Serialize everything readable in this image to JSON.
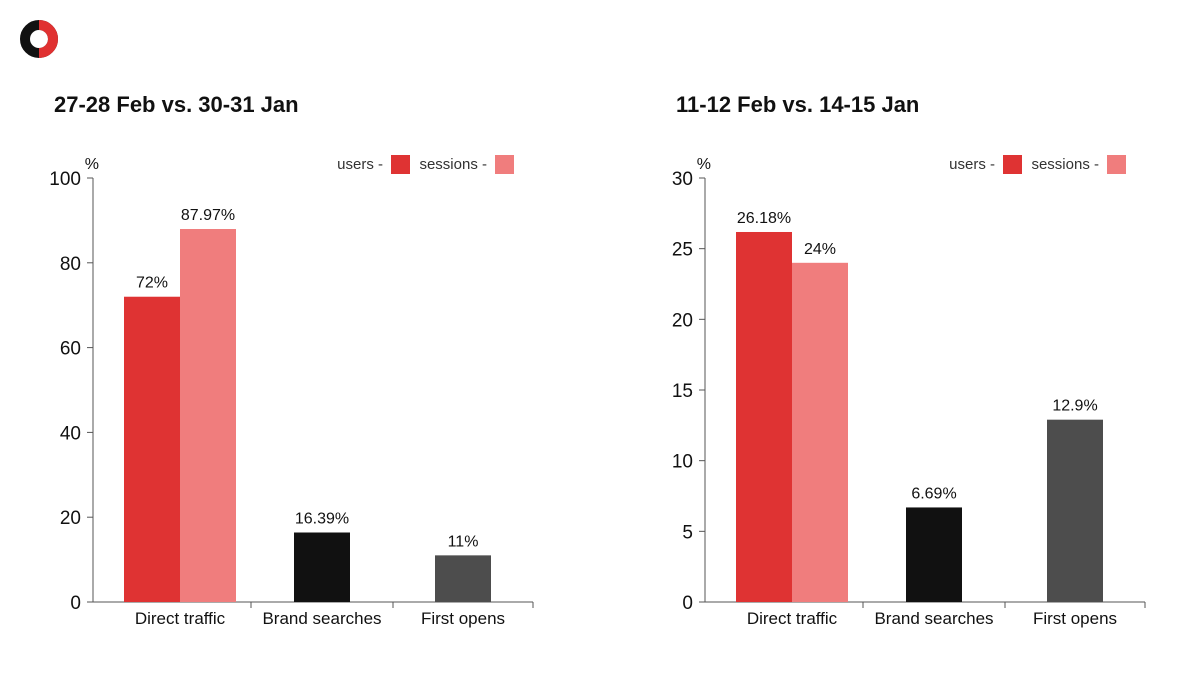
{
  "logo": {
    "name": "logo-icon",
    "colors": [
      "#111111",
      "#e03131"
    ]
  },
  "colors": {
    "users": "#df3333",
    "sessions": "#f07d7d",
    "brand_searches": "#111111",
    "first_opens": "#4d4d4d",
    "axis": "#555555",
    "text": "#111111"
  },
  "chart_data": [
    {
      "type": "bar",
      "title": "27-28 Feb vs. 30-31 Jan",
      "ylabel": "%",
      "ylim": [
        0,
        100
      ],
      "yticks": [
        0,
        20,
        40,
        60,
        80,
        100
      ],
      "categories": [
        "Direct traffic",
        "Brand searches",
        "First opens"
      ],
      "legend": {
        "placement": "top-right",
        "items": [
          {
            "label": "users -",
            "series": "users"
          },
          {
            "label": "sessions -",
            "series": "sessions"
          }
        ]
      },
      "bars": [
        {
          "category": "Direct traffic",
          "series": "users",
          "value": 72,
          "label": "72%"
        },
        {
          "category": "Direct traffic",
          "series": "sessions",
          "value": 87.97,
          "label": "87.97%"
        },
        {
          "category": "Brand searches",
          "series": "brand_searches",
          "value": 16.39,
          "label": "16.39%"
        },
        {
          "category": "First opens",
          "series": "first_opens",
          "value": 11,
          "label": "11%"
        }
      ]
    },
    {
      "type": "bar",
      "title": "11-12 Feb vs. 14-15 Jan",
      "ylabel": "%",
      "ylim": [
        0,
        30
      ],
      "yticks": [
        0,
        5,
        10,
        15,
        20,
        25,
        30
      ],
      "categories": [
        "Direct traffic",
        "Brand searches",
        "First opens"
      ],
      "legend": {
        "placement": "top-right",
        "items": [
          {
            "label": "users -",
            "series": "users"
          },
          {
            "label": "sessions -",
            "series": "sessions"
          }
        ]
      },
      "bars": [
        {
          "category": "Direct traffic",
          "series": "users",
          "value": 26.18,
          "label": "26.18%"
        },
        {
          "category": "Direct traffic",
          "series": "sessions",
          "value": 24,
          "label": "24%"
        },
        {
          "category": "Brand searches",
          "series": "brand_searches",
          "value": 6.69,
          "label": "6.69%"
        },
        {
          "category": "First opens",
          "series": "first_opens",
          "value": 12.9,
          "label": "12.9%"
        }
      ]
    }
  ]
}
